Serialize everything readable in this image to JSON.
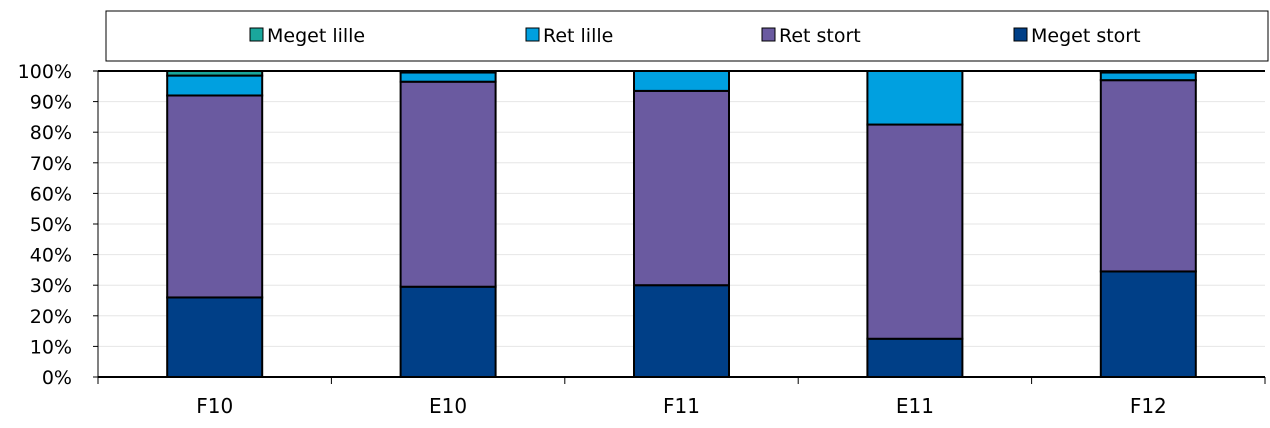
{
  "chart_data": {
    "type": "bar",
    "stacked": true,
    "categories": [
      "F10",
      "E10",
      "F11",
      "E11",
      "F12"
    ],
    "series": [
      {
        "name": "Meget stort",
        "color": "#003f87",
        "values": [
          26,
          29.5,
          30,
          12.5,
          34.5
        ]
      },
      {
        "name": "Ret stort",
        "color": "#6a5aa0",
        "values": [
          66,
          67,
          63.5,
          70,
          62.5
        ]
      },
      {
        "name": "Ret lille",
        "color": "#00a0e0",
        "values": [
          6.5,
          3,
          6.5,
          17.5,
          2.5
        ]
      },
      {
        "name": "Meget lille",
        "color": "#1aa79c",
        "values": [
          1.5,
          0.5,
          0,
          0,
          0.5
        ]
      }
    ],
    "legend_order": [
      "Meget lille",
      "Ret lille",
      "Ret stort",
      "Meget stort"
    ],
    "y_ticks": [
      "0%",
      "10%",
      "20%",
      "30%",
      "40%",
      "50%",
      "60%",
      "70%",
      "80%",
      "90%",
      "100%"
    ],
    "ylim": [
      0,
      100
    ],
    "grid": true,
    "legend_position": "top",
    "title": "",
    "xlabel": "",
    "ylabel": ""
  }
}
